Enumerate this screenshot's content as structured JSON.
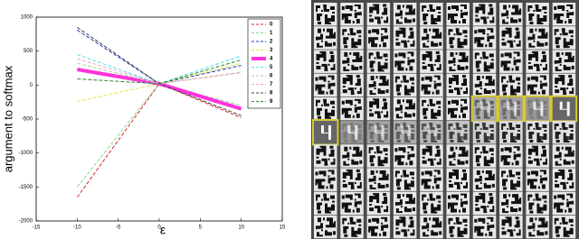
{
  "chart_data": {
    "type": "line",
    "x_label": "ε",
    "y_label": "argument to softmax",
    "xlim": [
      -15,
      15
    ],
    "xticks": [
      -15,
      -10,
      -5,
      0,
      5,
      10,
      15
    ],
    "ylim": [
      -2000,
      1000
    ],
    "yticks": [
      -2000,
      -1500,
      -1000,
      -500,
      0,
      500,
      1000
    ],
    "x": [
      -10,
      0,
      10
    ],
    "legend": "upper right",
    "series": [
      {
        "name": "0",
        "color": "#d62728",
        "style": "dashed",
        "width": 1,
        "values": [
          -1650,
          20,
          -480
        ]
      },
      {
        "name": "1",
        "color": "#8fd68f",
        "style": "dashed",
        "width": 1,
        "values": [
          -1500,
          20,
          -300
        ]
      },
      {
        "name": "2",
        "color": "#1f3fbf",
        "style": "dashed",
        "width": 1,
        "values": [
          810,
          20,
          290
        ]
      },
      {
        "name": "3",
        "color": "#e8e04a",
        "style": "dashed",
        "width": 1,
        "values": [
          -240,
          20,
          320
        ]
      },
      {
        "name": "4",
        "color": "#ff33dd",
        "style": "solid",
        "width": 4,
        "values": [
          230,
          20,
          -350
        ]
      },
      {
        "name": "5",
        "color": "#55e0e8",
        "style": "dashed",
        "width": 1,
        "values": [
          450,
          20,
          430
        ]
      },
      {
        "name": "6",
        "color": "#b8c8a0",
        "style": "dashed",
        "width": 1,
        "values": [
          320,
          20,
          190
        ]
      },
      {
        "name": "7",
        "color": "#f0a8c8",
        "style": "dashed",
        "width": 1,
        "values": [
          390,
          20,
          180
        ]
      },
      {
        "name": "8",
        "color": "#404040",
        "style": "dashed",
        "width": 1,
        "values": [
          850,
          20,
          -450
        ]
      },
      {
        "name": "9",
        "color": "#2a8a2a",
        "style": "dashed",
        "width": 1,
        "values": [
          90,
          20,
          370
        ]
      }
    ]
  }
}
